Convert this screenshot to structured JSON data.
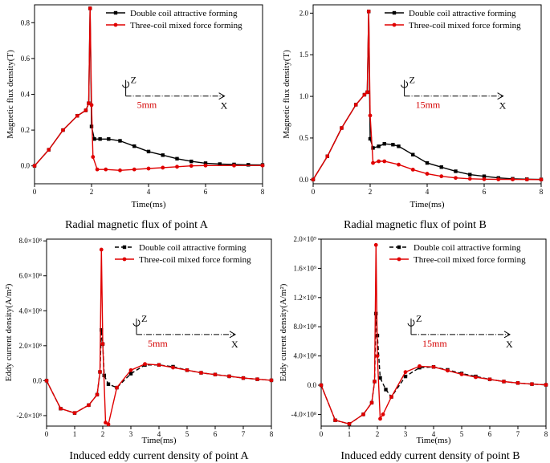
{
  "figure": {
    "panels": [
      {
        "caption": "Radial magnetic flux of point A"
      },
      {
        "caption": "Radial magnetic flux of point B"
      },
      {
        "caption": "Induced eddy current density of point A"
      },
      {
        "caption": "Induced eddy current density of point B"
      }
    ]
  },
  "colors": {
    "series_black": "#000000",
    "series_red": "#e00000",
    "annotation_red": "#d40000"
  },
  "chart_data": [
    {
      "type": "line",
      "title": "Radial magnetic flux of point A",
      "xlabel": "Time(ms)",
      "ylabel": "Magnetic flux density(T)",
      "xlim": [
        0,
        8
      ],
      "ylim": [
        -0.1,
        0.9
      ],
      "x_ticks": [
        "0",
        "2",
        "4",
        "6",
        "8"
      ],
      "y_ticks": [
        "0.0",
        "0.2",
        "0.4",
        "0.6",
        "0.8"
      ],
      "legend_placement": "top-right",
      "annotation": {
        "axis_z": "Z",
        "axis_x": "X",
        "distance": "5mm"
      },
      "series": [
        {
          "name": "Double coil attractive forming",
          "color": "#000000",
          "marker": "square",
          "dashed": false,
          "x": [
            0,
            0.5,
            1,
            1.5,
            1.8,
            1.9,
            1.95,
            2.0,
            2.1,
            2.3,
            2.6,
            3.0,
            3.5,
            4.0,
            4.5,
            5.0,
            5.5,
            6.0,
            6.5,
            7.0,
            7.5,
            8.0
          ],
          "y": [
            0,
            0.09,
            0.2,
            0.28,
            0.31,
            0.35,
            0.88,
            0.22,
            0.15,
            0.15,
            0.15,
            0.14,
            0.11,
            0.08,
            0.06,
            0.04,
            0.025,
            0.015,
            0.01,
            0.008,
            0.006,
            0.005
          ]
        },
        {
          "name": "Three-coil mixed force forming",
          "color": "#e00000",
          "marker": "circle",
          "dashed": false,
          "x": [
            0,
            0.5,
            1,
            1.5,
            1.8,
            1.9,
            1.95,
            2.0,
            2.05,
            2.2,
            2.5,
            3.0,
            3.5,
            4.0,
            4.5,
            5.0,
            5.5,
            6.0,
            7.0,
            8.0
          ],
          "y": [
            0,
            0.09,
            0.2,
            0.28,
            0.31,
            0.35,
            0.88,
            0.34,
            0.05,
            -0.02,
            -0.02,
            -0.025,
            -0.02,
            -0.015,
            -0.01,
            -0.005,
            0,
            0.002,
            0.002,
            0.002
          ]
        }
      ]
    },
    {
      "type": "line",
      "title": "Radial magnetic flux of point B",
      "xlabel": "Time(ms)",
      "ylabel": "Magnetic flux density(T)",
      "xlim": [
        0,
        8
      ],
      "ylim": [
        -0.05,
        2.1
      ],
      "x_ticks": [
        "0",
        "2",
        "4",
        "6",
        "8"
      ],
      "y_ticks": [
        "0.0",
        "0.5",
        "1.0",
        "1.5",
        "2.0"
      ],
      "legend_placement": "top-right",
      "annotation": {
        "axis_z": "Z",
        "axis_x": "X",
        "distance": "15mm"
      },
      "series": [
        {
          "name": "Double coil attractive forming",
          "color": "#000000",
          "marker": "square",
          "dashed": false,
          "x": [
            0,
            0.5,
            1,
            1.5,
            1.8,
            1.9,
            1.95,
            2.0,
            2.1,
            2.3,
            2.5,
            2.8,
            3.0,
            3.5,
            4.0,
            4.5,
            5.0,
            5.5,
            6.0,
            6.5,
            7.0,
            7.5,
            8.0
          ],
          "y": [
            0,
            0.28,
            0.62,
            0.9,
            1.02,
            1.05,
            2.02,
            0.49,
            0.38,
            0.4,
            0.43,
            0.42,
            0.4,
            0.3,
            0.2,
            0.15,
            0.1,
            0.06,
            0.04,
            0.02,
            0.01,
            0.005,
            0.002
          ]
        },
        {
          "name": "Three-coil mixed force forming",
          "color": "#e00000",
          "marker": "circle",
          "dashed": false,
          "x": [
            0,
            0.5,
            1,
            1.5,
            1.8,
            1.9,
            1.95,
            2.0,
            2.1,
            2.3,
            2.5,
            3.0,
            3.5,
            4.0,
            4.5,
            5.0,
            5.5,
            6.0,
            6.5,
            7.0,
            7.5,
            8.0
          ],
          "y": [
            0,
            0.28,
            0.62,
            0.9,
            1.02,
            1.05,
            2.02,
            0.77,
            0.2,
            0.22,
            0.22,
            0.18,
            0.12,
            0.07,
            0.04,
            0.02,
            0.01,
            0.005,
            0.003,
            0.002,
            0.001,
            0
          ]
        }
      ]
    },
    {
      "type": "line",
      "title": "Induced eddy current density of point A",
      "xlabel": "Time(ms)",
      "ylabel": "Eddy current density(A/m²)",
      "xlim": [
        0,
        8
      ],
      "ylim": [
        -260000000.0,
        810000000.0
      ],
      "x_ticks": [
        "0",
        "1",
        "2",
        "3",
        "4",
        "5",
        "6",
        "7",
        "8"
      ],
      "y_ticks": [
        "-2.0×10⁸",
        "0.0",
        "2.0×10⁸",
        "4.0×10⁸",
        "6.0×10⁸",
        "8.0×10⁸"
      ],
      "y_tick_values": [
        -200000000.0,
        0,
        200000000.0,
        400000000.0,
        600000000.0,
        800000000.0
      ],
      "legend_placement": "top-right",
      "annotation": {
        "axis_z": "Z",
        "axis_x": "X",
        "distance": "5mm"
      },
      "series": [
        {
          "name": "Double coil attractive forming",
          "color": "#000000",
          "marker": "square",
          "dashed": true,
          "x": [
            0,
            0.5,
            1,
            1.5,
            1.8,
            1.9,
            1.95,
            2.0,
            2.05,
            2.2,
            2.5,
            3.0,
            3.5,
            4.0,
            4.5,
            5.0,
            5.5,
            6.0,
            6.5,
            7.0,
            7.5,
            8.0
          ],
          "y": [
            0,
            -160000000.0,
            -185000000.0,
            -140000000.0,
            -80000000.0,
            50000000.0,
            290000000.0,
            210000000.0,
            30000000.0,
            -20000000.0,
            -40000000.0,
            40000000.0,
            90000000.0,
            90000000.0,
            80000000.0,
            60000000.0,
            45000000.0,
            35000000.0,
            25000000.0,
            15000000.0,
            8000000.0,
            2000000.0
          ]
        },
        {
          "name": "Three-coil mixed force forming",
          "color": "#e00000",
          "marker": "circle",
          "dashed": false,
          "x": [
            0,
            0.5,
            1,
            1.5,
            1.8,
            1.9,
            1.95,
            2.0,
            2.1,
            2.2,
            2.5,
            3.0,
            3.5,
            4.0,
            4.5,
            5.0,
            5.5,
            6.0,
            6.5,
            7.0,
            7.5,
            8.0
          ],
          "y": [
            0,
            -160000000.0,
            -185000000.0,
            -140000000.0,
            -80000000.0,
            50000000.0,
            750000000.0,
            210000000.0,
            -240000000.0,
            -250000000.0,
            -40000000.0,
            60000000.0,
            95000000.0,
            90000000.0,
            75000000.0,
            60000000.0,
            45000000.0,
            35000000.0,
            25000000.0,
            15000000.0,
            8000000.0,
            2000000.0
          ]
        }
      ]
    },
    {
      "type": "line",
      "title": "Induced eddy current density of point B",
      "xlabel": "Time(ms)",
      "ylabel": "Eddy current density(A/m²)",
      "xlim": [
        0,
        8
      ],
      "ylim": [
        -560000000.0,
        2000000000.0
      ],
      "x_ticks": [
        "0",
        "1",
        "2",
        "3",
        "4",
        "5",
        "6",
        "7",
        "8"
      ],
      "y_ticks": [
        "-4.0×10⁸",
        "0.0",
        "4.0×10⁸",
        "8.0×10⁸",
        "1.2×10⁹",
        "1.6×10⁹",
        "2.0×10⁹"
      ],
      "y_tick_values": [
        -400000000.0,
        0,
        400000000.0,
        800000000.0,
        1200000000.0,
        1600000000.0,
        2000000000.0
      ],
      "legend_placement": "top-right",
      "annotation": {
        "axis_z": "Z",
        "axis_x": "X",
        "distance": "15mm"
      },
      "series": [
        {
          "name": "Double coil attractive forming",
          "color": "#000000",
          "marker": "square",
          "dashed": true,
          "x": [
            0,
            0.5,
            1,
            1.5,
            1.8,
            1.9,
            1.95,
            2.0,
            2.1,
            2.3,
            2.5,
            3.0,
            3.5,
            4.0,
            4.5,
            5.0,
            5.5,
            6.0,
            6.5,
            7.0,
            7.5,
            8.0
          ],
          "y": [
            0,
            -480000000.0,
            -530000000.0,
            -400000000.0,
            -240000000.0,
            50000000.0,
            980000000.0,
            680000000.0,
            100000000.0,
            -60000000.0,
            -160000000.0,
            120000000.0,
            240000000.0,
            250000000.0,
            210000000.0,
            160000000.0,
            120000000.0,
            80000000.0,
            50000000.0,
            30000000.0,
            15000000.0,
            5000000.0
          ]
        },
        {
          "name": "Three-coil mixed force forming",
          "color": "#e00000",
          "marker": "circle",
          "dashed": false,
          "x": [
            0,
            0.5,
            1,
            1.5,
            1.8,
            1.9,
            1.95,
            2.0,
            2.1,
            2.2,
            2.5,
            3.0,
            3.5,
            4.0,
            4.5,
            5.0,
            5.5,
            6.0,
            6.5,
            7.0,
            7.5,
            8.0
          ],
          "y": [
            0,
            -480000000.0,
            -530000000.0,
            -400000000.0,
            -240000000.0,
            50000000.0,
            1920000000.0,
            400000000.0,
            -460000000.0,
            -400000000.0,
            -160000000.0,
            180000000.0,
            260000000.0,
            250000000.0,
            200000000.0,
            150000000.0,
            110000000.0,
            80000000.0,
            50000000.0,
            30000000.0,
            15000000.0,
            5000000.0
          ]
        }
      ]
    }
  ]
}
